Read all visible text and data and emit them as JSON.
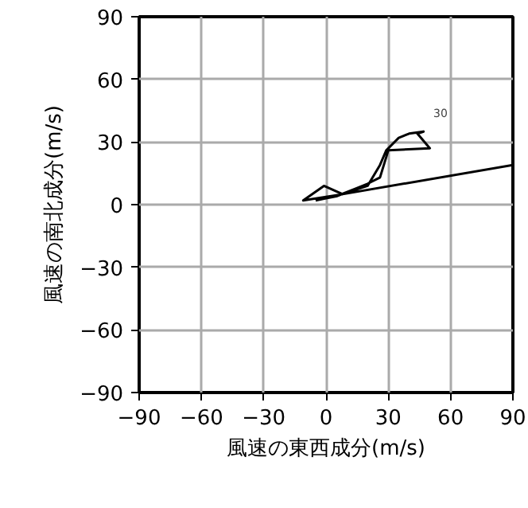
{
  "chart_data": {
    "type": "line",
    "xlabel": "風速の東西成分(m/s)",
    "ylabel": "風速の南北成分(m/s)",
    "xlim": [
      -90,
      90
    ],
    "ylim": [
      -90,
      90
    ],
    "xticks": [
      {
        "value": -90,
        "label": "−90"
      },
      {
        "value": -60,
        "label": "−60"
      },
      {
        "value": -30,
        "label": "−30"
      },
      0,
      30,
      60,
      90
    ],
    "yticks": [
      {
        "value": -90,
        "label": "−90"
      },
      {
        "value": -60,
        "label": "−60"
      },
      {
        "value": -30,
        "label": "−30"
      },
      0,
      30,
      60,
      90
    ],
    "grid": true,
    "annotations": [
      "30"
    ],
    "series": [
      {
        "color": "#000000",
        "x": [
          90,
          8,
          -11,
          -1,
          8,
          14,
          20,
          26,
          29,
          35,
          40,
          47,
          44,
          50,
          30,
          26,
          20,
          15,
          5,
          0,
          -5
        ],
        "values": [
          19,
          5,
          2,
          9,
          5,
          7,
          9,
          19,
          26,
          32,
          34,
          35,
          34,
          27,
          26,
          13,
          10,
          8,
          4,
          3,
          2
        ]
      }
    ]
  }
}
